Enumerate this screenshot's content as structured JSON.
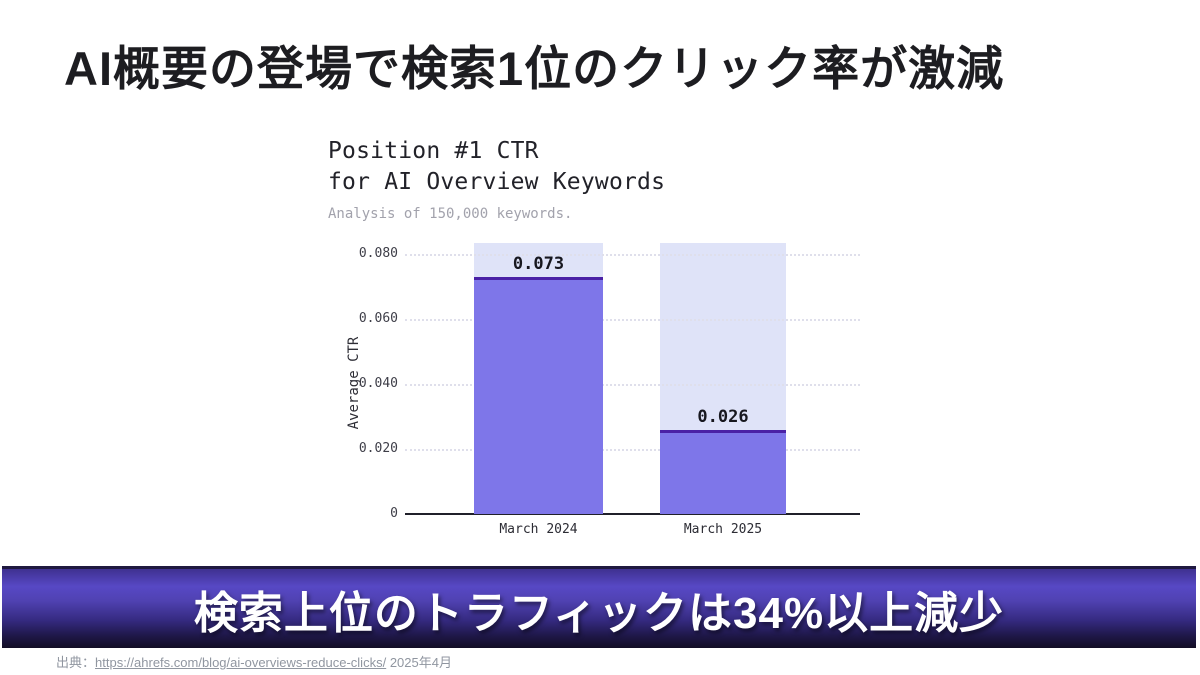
{
  "slide": {
    "title": "AI概要の登場で検索1位のクリック率が激減",
    "banner": "検索上位のトラフィックは34%以上減少",
    "source_prefix": "出典：",
    "source_link": "https://ahrefs.com/blog/ai-overviews-reduce-clicks/",
    "source_suffix": "2025年4月"
  },
  "chart_data": {
    "type": "bar",
    "title_line1": "Position #1 CTR",
    "title_line2": "for AI Overview Keywords",
    "subtitle": "Analysis of 150,000 keywords.",
    "ylabel": "Average CTR",
    "categories": [
      "March 2024",
      "March 2025"
    ],
    "values": [
      0.073,
      0.026
    ],
    "value_labels": [
      "0.073",
      "0.026"
    ],
    "yticks": [
      "0.080",
      "0.060",
      "0.040",
      "0.020",
      "0"
    ],
    "ytick_values": [
      0.08,
      0.06,
      0.04,
      0.02,
      0
    ],
    "ylim": [
      0,
      0.0834
    ],
    "grid": "horizontal dotted",
    "legend": "none",
    "colors": {
      "bar_fill": "#7e76e9",
      "bar_top_line": "#4a21a6",
      "bar_background_column": "#dfe3f8",
      "axis_line": "#20202a",
      "gridline": "#dfdfeb",
      "banner_purple": "#5748c5",
      "title_text": "#1d1d21",
      "subtitle_text": "#a2a2ac",
      "footer_text": "#9096a0"
    }
  }
}
